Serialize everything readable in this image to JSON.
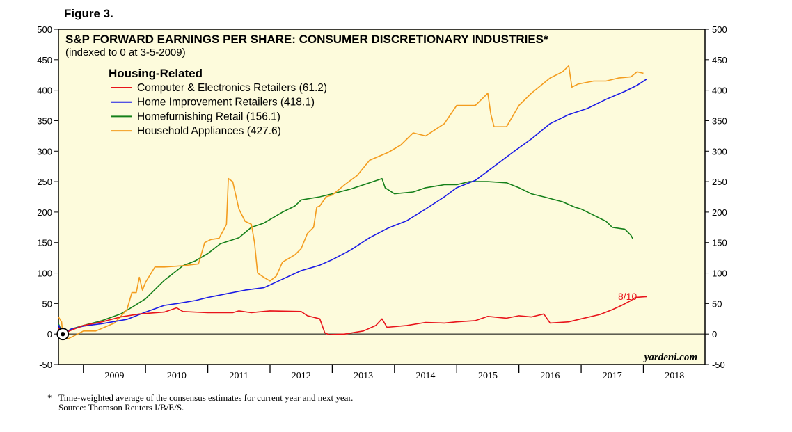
{
  "figure_label": "Figure 3.",
  "footnote": {
    "marker": "*",
    "text": "Time-weighted average of the consensus estimates for current year and next year.",
    "source": "Source: Thomson Reuters I/B/E/S."
  },
  "colors": {
    "panel": "#fdfbdc",
    "computer": "#e8141b",
    "home": "#1a1ae6",
    "homefurnishing": "#15801a",
    "appliances": "#f39c1e"
  },
  "chart_data": {
    "type": "line",
    "title": "S&P FORWARD EARNINGS PER SHARE: CONSUMER DISCRETIONARY INDUSTRIES*",
    "subtitle": "(indexed to 0 at 3-5-2009)",
    "legend_title": "Housing-Related",
    "legend_position": "top-left",
    "watermark": "yardeni.com",
    "end_label": "8/10",
    "xlabel": "",
    "ylabel": "",
    "x_tick_labels": [
      "2009",
      "2010",
      "2011",
      "2012",
      "2013",
      "2014",
      "2015",
      "2016",
      "2017",
      "2018"
    ],
    "xlim": [
      2008.6,
      2018.99
    ],
    "ylim": [
      -50,
      500
    ],
    "y_ticks": [
      -50,
      0,
      50,
      100,
      150,
      200,
      250,
      300,
      350,
      400,
      450,
      500
    ],
    "zero_line": 0,
    "marker_point": {
      "x": 2008.67,
      "y": 0
    },
    "series": [
      {
        "name": "Computer & Electronics Retailers (61.2)",
        "color_key": "computer",
        "points": [
          [
            2008.6,
            10
          ],
          [
            2008.67,
            0
          ],
          [
            2008.8,
            6
          ],
          [
            2009.0,
            14
          ],
          [
            2009.3,
            20
          ],
          [
            2009.6,
            28
          ],
          [
            2009.9,
            33
          ],
          [
            2010.3,
            36
          ],
          [
            2010.5,
            43
          ],
          [
            2010.6,
            37
          ],
          [
            2011.0,
            35
          ],
          [
            2011.4,
            35
          ],
          [
            2011.5,
            38
          ],
          [
            2011.7,
            35
          ],
          [
            2011.8,
            36
          ],
          [
            2012.0,
            38
          ],
          [
            2012.5,
            37
          ],
          [
            2012.6,
            30
          ],
          [
            2012.8,
            25
          ],
          [
            2012.88,
            2
          ],
          [
            2012.95,
            -1
          ],
          [
            2013.2,
            0
          ],
          [
            2013.5,
            5
          ],
          [
            2013.7,
            14
          ],
          [
            2013.8,
            25
          ],
          [
            2013.88,
            11
          ],
          [
            2014.2,
            14
          ],
          [
            2014.5,
            19
          ],
          [
            2014.8,
            18
          ],
          [
            2015.0,
            20
          ],
          [
            2015.3,
            22
          ],
          [
            2015.5,
            29
          ],
          [
            2015.8,
            26
          ],
          [
            2016.0,
            30
          ],
          [
            2016.2,
            28
          ],
          [
            2016.4,
            33
          ],
          [
            2016.5,
            18
          ],
          [
            2016.8,
            20
          ],
          [
            2017.0,
            25
          ],
          [
            2017.3,
            32
          ],
          [
            2017.5,
            40
          ],
          [
            2017.65,
            47
          ],
          [
            2017.8,
            55
          ],
          [
            2017.87,
            60
          ],
          [
            2018.0,
            61
          ],
          [
            2018.05,
            61.2
          ]
        ]
      },
      {
        "name": "Home Improvement Retailers (418.1)",
        "color_key": "home",
        "points": [
          [
            2008.6,
            15
          ],
          [
            2008.67,
            0
          ],
          [
            2008.8,
            8
          ],
          [
            2009.0,
            13
          ],
          [
            2009.3,
            17
          ],
          [
            2009.7,
            24
          ],
          [
            2010.0,
            36
          ],
          [
            2010.3,
            47
          ],
          [
            2010.5,
            50
          ],
          [
            2010.8,
            55
          ],
          [
            2011.0,
            60
          ],
          [
            2011.3,
            66
          ],
          [
            2011.6,
            72
          ],
          [
            2011.9,
            76
          ],
          [
            2012.2,
            90
          ],
          [
            2012.5,
            104
          ],
          [
            2012.8,
            113
          ],
          [
            2013.0,
            122
          ],
          [
            2013.3,
            138
          ],
          [
            2013.6,
            158
          ],
          [
            2013.9,
            174
          ],
          [
            2014.2,
            186
          ],
          [
            2014.5,
            205
          ],
          [
            2014.8,
            225
          ],
          [
            2015.0,
            240
          ],
          [
            2015.3,
            252
          ],
          [
            2015.6,
            275
          ],
          [
            2015.9,
            298
          ],
          [
            2016.2,
            320
          ],
          [
            2016.5,
            345
          ],
          [
            2016.8,
            360
          ],
          [
            2017.1,
            370
          ],
          [
            2017.4,
            385
          ],
          [
            2017.7,
            398
          ],
          [
            2017.9,
            408
          ],
          [
            2018.05,
            418.1
          ]
        ]
      },
      {
        "name": "Homefurnishing Retail (156.1)",
        "color_key": "homefurnishing",
        "points": [
          [
            2008.6,
            17
          ],
          [
            2008.67,
            0
          ],
          [
            2008.8,
            8
          ],
          [
            2009.0,
            14
          ],
          [
            2009.3,
            22
          ],
          [
            2009.6,
            33
          ],
          [
            2009.8,
            45
          ],
          [
            2010.0,
            58
          ],
          [
            2010.3,
            88
          ],
          [
            2010.6,
            112
          ],
          [
            2010.8,
            120
          ],
          [
            2011.0,
            132
          ],
          [
            2011.2,
            148
          ],
          [
            2011.5,
            158
          ],
          [
            2011.7,
            175
          ],
          [
            2011.9,
            182
          ],
          [
            2012.2,
            200
          ],
          [
            2012.4,
            210
          ],
          [
            2012.5,
            220
          ],
          [
            2012.8,
            225
          ],
          [
            2013.0,
            230
          ],
          [
            2013.3,
            238
          ],
          [
            2013.6,
            248
          ],
          [
            2013.8,
            255
          ],
          [
            2013.85,
            240
          ],
          [
            2014.0,
            230
          ],
          [
            2014.3,
            233
          ],
          [
            2014.5,
            240
          ],
          [
            2014.8,
            245
          ],
          [
            2015.0,
            245
          ],
          [
            2015.2,
            250
          ],
          [
            2015.5,
            250
          ],
          [
            2015.8,
            248
          ],
          [
            2016.0,
            240
          ],
          [
            2016.2,
            230
          ],
          [
            2016.4,
            225
          ],
          [
            2016.7,
            217
          ],
          [
            2016.9,
            208
          ],
          [
            2017.0,
            205
          ],
          [
            2017.2,
            195
          ],
          [
            2017.4,
            185
          ],
          [
            2017.5,
            175
          ],
          [
            2017.7,
            172
          ],
          [
            2017.8,
            162
          ],
          [
            2017.83,
            156.1
          ]
        ]
      },
      {
        "name": "Household Appliances (427.6)",
        "color_key": "appliances",
        "points": [
          [
            2008.6,
            28
          ],
          [
            2008.65,
            20
          ],
          [
            2008.67,
            0
          ],
          [
            2008.75,
            -8
          ],
          [
            2008.85,
            -3
          ],
          [
            2009.0,
            5
          ],
          [
            2009.2,
            5
          ],
          [
            2009.5,
            18
          ],
          [
            2009.7,
            40
          ],
          [
            2009.78,
            68
          ],
          [
            2009.85,
            68
          ],
          [
            2009.9,
            93
          ],
          [
            2009.95,
            72
          ],
          [
            2010.0,
            85
          ],
          [
            2010.15,
            110
          ],
          [
            2010.3,
            110
          ],
          [
            2010.6,
            112
          ],
          [
            2010.85,
            115
          ],
          [
            2010.95,
            150
          ],
          [
            2011.05,
            155
          ],
          [
            2011.18,
            157
          ],
          [
            2011.25,
            170
          ],
          [
            2011.3,
            180
          ],
          [
            2011.33,
            255
          ],
          [
            2011.4,
            250
          ],
          [
            2011.5,
            205
          ],
          [
            2011.6,
            185
          ],
          [
            2011.7,
            180
          ],
          [
            2011.75,
            150
          ],
          [
            2011.8,
            100
          ],
          [
            2011.9,
            93
          ],
          [
            2012.0,
            87
          ],
          [
            2012.1,
            95
          ],
          [
            2012.2,
            118
          ],
          [
            2012.4,
            130
          ],
          [
            2012.5,
            140
          ],
          [
            2012.6,
            165
          ],
          [
            2012.7,
            175
          ],
          [
            2012.75,
            208
          ],
          [
            2012.8,
            210
          ],
          [
            2012.9,
            225
          ],
          [
            2013.0,
            228
          ],
          [
            2013.2,
            245
          ],
          [
            2013.4,
            260
          ],
          [
            2013.6,
            285
          ],
          [
            2013.9,
            298
          ],
          [
            2014.1,
            310
          ],
          [
            2014.3,
            330
          ],
          [
            2014.5,
            325
          ],
          [
            2014.8,
            345
          ],
          [
            2015.0,
            375
          ],
          [
            2015.1,
            375
          ],
          [
            2015.3,
            375
          ],
          [
            2015.4,
            385
          ],
          [
            2015.5,
            395
          ],
          [
            2015.55,
            360
          ],
          [
            2015.6,
            340
          ],
          [
            2015.8,
            340
          ],
          [
            2016.0,
            375
          ],
          [
            2016.2,
            395
          ],
          [
            2016.5,
            420
          ],
          [
            2016.7,
            430
          ],
          [
            2016.8,
            440
          ],
          [
            2016.85,
            405
          ],
          [
            2016.95,
            410
          ],
          [
            2017.2,
            415
          ],
          [
            2017.4,
            415
          ],
          [
            2017.6,
            420
          ],
          [
            2017.8,
            422
          ],
          [
            2017.9,
            430
          ],
          [
            2018.0,
            427.6
          ]
        ]
      }
    ]
  }
}
